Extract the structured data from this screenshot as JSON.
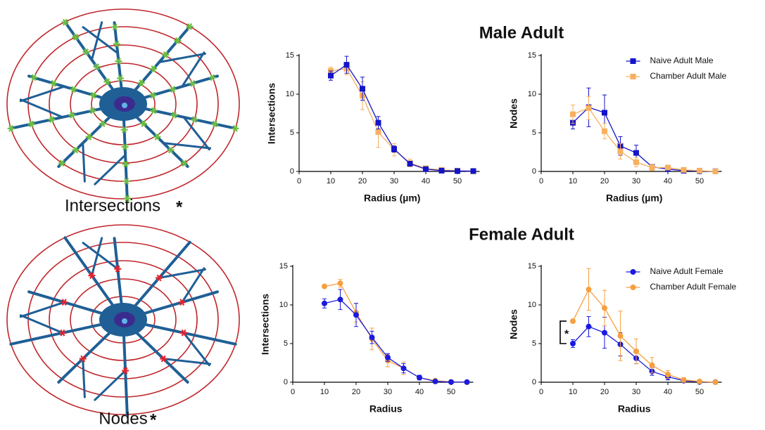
{
  "row_titles": [
    "Male Adult",
    "Female Adult"
  ],
  "diagrams": [
    {
      "label": "Intersections",
      "marker": "*",
      "marker_color": "#36b34a",
      "star_color": "#6dbd45"
    },
    {
      "label": "Nodes",
      "marker": "*",
      "marker_color": "#f4a0a8",
      "star_color": "#e0252f"
    }
  ],
  "chart_data": [
    {
      "type": "line",
      "xlabel": "Radius (µm)",
      "ylabel": "Intersections",
      "marker": "square",
      "x": [
        10,
        15,
        20,
        25,
        30,
        35,
        40,
        45,
        50,
        55
      ],
      "xlim": [
        0,
        57
      ],
      "xticks": [
        0,
        10,
        20,
        30,
        40,
        50
      ],
      "ylim": [
        0,
        15
      ],
      "yticks": [
        0,
        5,
        10,
        15
      ],
      "series": [
        {
          "color": "#f6b060",
          "values": [
            13.0,
            13.3,
            9.8,
            5.1,
            2.8,
            1.1,
            0.4,
            0.2,
            0.1,
            0
          ],
          "errors": [
            0.5,
            0.8,
            1.8,
            2.0,
            0.8,
            0.5,
            0.3,
            0.2,
            0.1,
            0
          ]
        },
        {
          "color": "#1414c8",
          "values": [
            12.4,
            13.8,
            10.7,
            6.3,
            2.9,
            1.0,
            0.3,
            0.1,
            0.05,
            0.05
          ],
          "errors": [
            0.6,
            1.1,
            1.5,
            0.8,
            0.4,
            0.3,
            0.2,
            0.1,
            0,
            0
          ]
        }
      ]
    },
    {
      "type": "line",
      "xlabel": "Radius (µm)",
      "ylabel": "Nodes",
      "marker": "square",
      "legend": "upper right",
      "x": [
        10,
        15,
        20,
        25,
        30,
        35,
        40,
        45,
        50,
        55
      ],
      "xlim": [
        0,
        57
      ],
      "xticks": [
        0,
        10,
        20,
        30,
        40,
        50
      ],
      "ylim": [
        0,
        15
      ],
      "yticks": [
        0,
        5,
        10,
        15
      ],
      "series": [
        {
          "name": "Naive Adult Male",
          "color": "#1414c8",
          "values": [
            6.3,
            8.3,
            7.6,
            3.3,
            2.4,
            0.6,
            0.3,
            0.1,
            0.05,
            0.02
          ],
          "errors": [
            0.8,
            2.5,
            2.3,
            1.2,
            1.0,
            0.3,
            0.2,
            0.1,
            0,
            0
          ]
        },
        {
          "name": "Chamber Adult Male",
          "color": "#f6b060",
          "values": [
            7.4,
            8.2,
            5.2,
            2.6,
            1.2,
            0.5,
            0.5,
            0.2,
            0.1,
            0
          ],
          "errors": [
            1.2,
            1.5,
            1.0,
            1.0,
            0.6,
            0.4,
            0.3,
            0.2,
            0.1,
            0
          ]
        }
      ]
    },
    {
      "type": "line",
      "xlabel": "Radius",
      "ylabel": "Intersections",
      "marker": "circle",
      "x": [
        10,
        15,
        20,
        25,
        30,
        35,
        40,
        45,
        50,
        55
      ],
      "xlim": [
        0,
        57
      ],
      "xticks": [
        0,
        10,
        20,
        30,
        40,
        50
      ],
      "ylim": [
        0,
        15
      ],
      "yticks": [
        0,
        5,
        10,
        15
      ],
      "series": [
        {
          "color": "#f5a040",
          "values": [
            12.4,
            12.8,
            9.0,
            5.6,
            2.8,
            1.8,
            0.6,
            0.2,
            0.05,
            0
          ],
          "errors": [
            0.2,
            0.5,
            1.2,
            1.4,
            0.8,
            0.8,
            0.3,
            0.2,
            0.1,
            0
          ]
        },
        {
          "color": "#1a1ae0",
          "values": [
            10.2,
            10.7,
            8.7,
            5.8,
            3.2,
            1.8,
            0.6,
            0.1,
            0.02,
            0.02
          ],
          "errors": [
            0.6,
            1.3,
            1.5,
            0.8,
            0.5,
            0.6,
            0.3,
            0.1,
            0,
            0
          ]
        }
      ]
    },
    {
      "type": "line",
      "xlabel": "Radius",
      "ylabel": "Nodes",
      "marker": "circle",
      "legend": "upper right",
      "annotation": "*",
      "x": [
        10,
        15,
        20,
        25,
        30,
        35,
        40,
        45,
        50,
        55
      ],
      "xlim": [
        0,
        57
      ],
      "xticks": [
        0,
        10,
        20,
        30,
        40,
        50
      ],
      "ylim": [
        0,
        15
      ],
      "yticks": [
        0,
        5,
        10,
        15
      ],
      "series": [
        {
          "name": "Naive Adult Female",
          "color": "#1a1ae0",
          "values": [
            5.0,
            7.2,
            6.4,
            4.9,
            3.1,
            1.4,
            0.7,
            0.2,
            0.05,
            0.02
          ],
          "errors": [
            0.5,
            1.3,
            2.0,
            1.5,
            0.7,
            0.5,
            0.4,
            0.1,
            0,
            0
          ]
        },
        {
          "name": "Chamber Adult Female",
          "color": "#f5a040",
          "values": [
            7.9,
            12.0,
            9.6,
            6.0,
            4.0,
            2.2,
            1.0,
            0.3,
            0.1,
            0
          ],
          "errors": [
            0.2,
            2.7,
            2.3,
            3.2,
            1.6,
            1.0,
            0.5,
            0.3,
            0.1,
            0
          ]
        }
      ]
    }
  ]
}
